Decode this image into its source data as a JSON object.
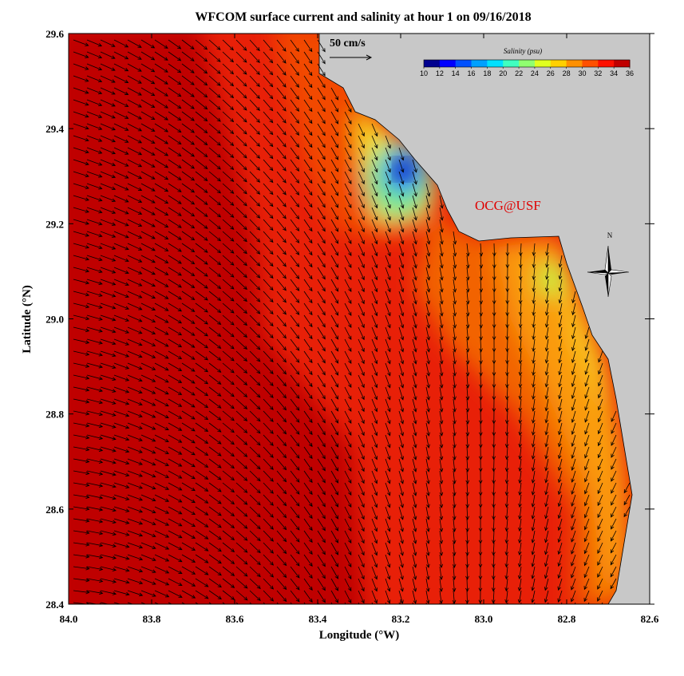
{
  "chart_data": {
    "type": "map",
    "title": "WFCOM surface current and salinity at hour 1 on 09/16/2018",
    "x_label": "Longitude (°W)",
    "y_label": "Latitude (°N)",
    "xlim": [
      84.0,
      82.6
    ],
    "xticks": [
      {
        "value": 84.0,
        "label": "84.0"
      },
      83.8,
      83.6,
      83.4,
      83.2,
      {
        "value": 83.0,
        "label": "83.0"
      },
      82.8,
      82.6
    ],
    "ylim": [
      28.4,
      29.6
    ],
    "yticks": [
      28.4,
      28.6,
      28.8,
      {
        "value": 29.0,
        "label": "29.0"
      },
      29.2,
      29.4,
      29.6
    ],
    "colorbar": {
      "title": "Salinity (psu)",
      "lim": [
        10,
        36
      ],
      "ticks": [
        10,
        12,
        14,
        16,
        18,
        20,
        22,
        24,
        26,
        28,
        30,
        32,
        34,
        36
      ],
      "colors": [
        "#00008f",
        "#0000ff",
        "#0050ff",
        "#00a0ff",
        "#00e0ff",
        "#40ffc0",
        "#90ff70",
        "#e0ff20",
        "#ffd000",
        "#ff9000",
        "#ff5000",
        "#ff1000",
        "#c00000"
      ]
    },
    "scale_label": "50 cm/s",
    "credit": "OCG@USF",
    "north_label": "N"
  }
}
